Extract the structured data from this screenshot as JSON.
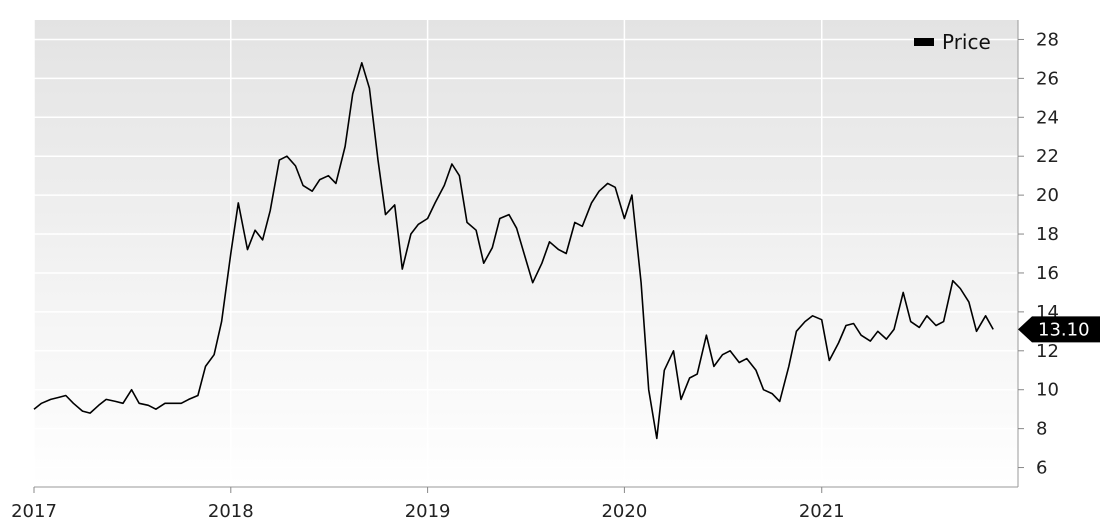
{
  "chart_data": {
    "type": "line",
    "title": "",
    "xlabel": "",
    "ylabel": "",
    "x_ticks": [
      "2017",
      "2018",
      "2019",
      "2020",
      "2021"
    ],
    "xlim": [
      "2017-01-01",
      "2021-12-31"
    ],
    "ylim": [
      5,
      29
    ],
    "y_ticks": [
      6,
      8,
      10,
      12,
      14,
      16,
      18,
      20,
      22,
      24,
      26,
      28
    ],
    "grid": true,
    "legend_position": "top-right",
    "last_value_label": "13.10",
    "series": [
      {
        "name": "Price",
        "color": "#000000",
        "points": [
          [
            "2017-01-01",
            9.0
          ],
          [
            "2017-01-15",
            9.3
          ],
          [
            "2017-02-01",
            9.5
          ],
          [
            "2017-02-15",
            9.6
          ],
          [
            "2017-03-01",
            9.7
          ],
          [
            "2017-03-15",
            9.3
          ],
          [
            "2017-04-01",
            8.9
          ],
          [
            "2017-04-15",
            8.8
          ],
          [
            "2017-05-01",
            9.2
          ],
          [
            "2017-05-15",
            9.5
          ],
          [
            "2017-06-01",
            9.4
          ],
          [
            "2017-06-15",
            9.3
          ],
          [
            "2017-07-01",
            10.0
          ],
          [
            "2017-07-15",
            9.3
          ],
          [
            "2017-08-01",
            9.2
          ],
          [
            "2017-08-15",
            9.0
          ],
          [
            "2017-09-01",
            9.3
          ],
          [
            "2017-09-15",
            9.3
          ],
          [
            "2017-10-01",
            9.3
          ],
          [
            "2017-10-15",
            9.5
          ],
          [
            "2017-11-01",
            9.7
          ],
          [
            "2017-11-15",
            11.2
          ],
          [
            "2017-12-01",
            11.8
          ],
          [
            "2017-12-15",
            13.5
          ],
          [
            "2018-01-01",
            17.0
          ],
          [
            "2018-01-15",
            19.6
          ],
          [
            "2018-02-01",
            17.2
          ],
          [
            "2018-02-15",
            18.2
          ],
          [
            "2018-03-01",
            17.7
          ],
          [
            "2018-03-15",
            19.2
          ],
          [
            "2018-04-01",
            21.8
          ],
          [
            "2018-04-15",
            22.0
          ],
          [
            "2018-05-01",
            21.5
          ],
          [
            "2018-05-15",
            20.5
          ],
          [
            "2018-06-01",
            20.2
          ],
          [
            "2018-06-15",
            20.8
          ],
          [
            "2018-07-01",
            21.0
          ],
          [
            "2018-07-15",
            20.6
          ],
          [
            "2018-08-01",
            22.5
          ],
          [
            "2018-08-15",
            25.2
          ],
          [
            "2018-09-01",
            26.8
          ],
          [
            "2018-09-15",
            25.5
          ],
          [
            "2018-10-01",
            21.8
          ],
          [
            "2018-10-15",
            19.0
          ],
          [
            "2018-11-01",
            19.5
          ],
          [
            "2018-11-15",
            16.2
          ],
          [
            "2018-12-01",
            18.0
          ],
          [
            "2018-12-15",
            18.5
          ],
          [
            "2019-01-01",
            18.8
          ],
          [
            "2019-01-15",
            19.6
          ],
          [
            "2019-02-01",
            20.5
          ],
          [
            "2019-02-15",
            21.6
          ],
          [
            "2019-03-01",
            21.0
          ],
          [
            "2019-03-15",
            18.6
          ],
          [
            "2019-04-01",
            18.2
          ],
          [
            "2019-04-15",
            16.5
          ],
          [
            "2019-05-01",
            17.3
          ],
          [
            "2019-05-15",
            18.8
          ],
          [
            "2019-06-01",
            19.0
          ],
          [
            "2019-06-15",
            18.3
          ],
          [
            "2019-07-01",
            16.8
          ],
          [
            "2019-07-15",
            15.5
          ],
          [
            "2019-08-01",
            16.5
          ],
          [
            "2019-08-15",
            17.6
          ],
          [
            "2019-09-01",
            17.2
          ],
          [
            "2019-09-15",
            17.0
          ],
          [
            "2019-10-01",
            18.6
          ],
          [
            "2019-10-15",
            18.4
          ],
          [
            "2019-11-01",
            19.6
          ],
          [
            "2019-11-15",
            20.2
          ],
          [
            "2019-12-01",
            20.6
          ],
          [
            "2019-12-15",
            20.4
          ],
          [
            "2020-01-01",
            18.8
          ],
          [
            "2020-01-15",
            20.0
          ],
          [
            "2020-02-01",
            15.5
          ],
          [
            "2020-02-15",
            10.0
          ],
          [
            "2020-03-01",
            7.5
          ],
          [
            "2020-03-15",
            11.0
          ],
          [
            "2020-04-01",
            12.0
          ],
          [
            "2020-04-15",
            9.5
          ],
          [
            "2020-05-01",
            10.6
          ],
          [
            "2020-05-15",
            10.8
          ],
          [
            "2020-06-01",
            12.8
          ],
          [
            "2020-06-15",
            11.2
          ],
          [
            "2020-07-01",
            11.8
          ],
          [
            "2020-07-15",
            12.0
          ],
          [
            "2020-08-01",
            11.4
          ],
          [
            "2020-08-15",
            11.6
          ],
          [
            "2020-09-01",
            11.0
          ],
          [
            "2020-09-15",
            10.0
          ],
          [
            "2020-10-01",
            9.8
          ],
          [
            "2020-10-15",
            9.4
          ],
          [
            "2020-11-01",
            11.2
          ],
          [
            "2020-11-15",
            13.0
          ],
          [
            "2020-12-01",
            13.5
          ],
          [
            "2020-12-15",
            13.8
          ],
          [
            "2021-01-01",
            13.6
          ],
          [
            "2021-01-15",
            11.5
          ],
          [
            "2021-02-01",
            12.4
          ],
          [
            "2021-02-15",
            13.3
          ],
          [
            "2021-03-01",
            13.4
          ],
          [
            "2021-03-15",
            12.8
          ],
          [
            "2021-04-01",
            12.5
          ],
          [
            "2021-04-15",
            13.0
          ],
          [
            "2021-05-01",
            12.6
          ],
          [
            "2021-05-15",
            13.1
          ],
          [
            "2021-06-01",
            15.0
          ],
          [
            "2021-06-15",
            13.5
          ],
          [
            "2021-07-01",
            13.2
          ],
          [
            "2021-07-15",
            13.8
          ],
          [
            "2021-08-01",
            13.3
          ],
          [
            "2021-08-15",
            13.5
          ],
          [
            "2021-09-01",
            15.6
          ],
          [
            "2021-09-15",
            15.2
          ],
          [
            "2021-10-01",
            14.5
          ],
          [
            "2021-10-15",
            13.0
          ],
          [
            "2021-11-01",
            13.8
          ],
          [
            "2021-11-15",
            13.1
          ]
        ]
      }
    ]
  }
}
